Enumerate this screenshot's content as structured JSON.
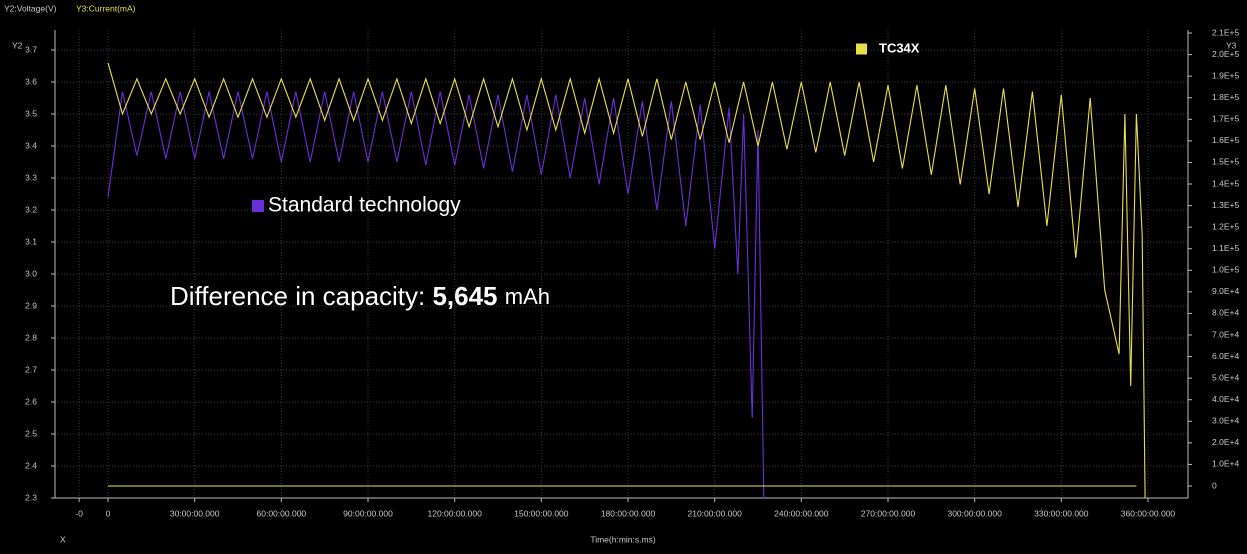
{
  "chart_data": {
    "type": "line",
    "y2_title": "Y2:Voltage(V)",
    "y3_title": "Y3:Current(mA)",
    "y_axis_label": "Y2",
    "y2_axis_label": "Y3",
    "x_axis_name": "X",
    "x_title": "Time(h:min:s.ms)",
    "annotation": [
      "Difference in capacity:",
      "5,645",
      "mAh"
    ],
    "xlim": [
      -18.35,
      373.85
    ],
    "xticks": [
      {
        "value": -10,
        "label": "-0"
      },
      0,
      {
        "value": 30,
        "label": "30:00:00.000"
      },
      {
        "value": 60,
        "label": "60:00:00.000"
      },
      {
        "value": 90,
        "label": "90:00:00.000"
      },
      {
        "value": 120,
        "label": "120:00:00.000"
      },
      {
        "value": 150,
        "label": "150:00:00.000"
      },
      {
        "value": 180,
        "label": "180:00:00.000"
      },
      {
        "value": 210,
        "label": "210:00:00.000"
      },
      {
        "value": 240,
        "label": "240:00:00.000"
      },
      {
        "value": 270,
        "label": "270:00:00.000"
      },
      {
        "value": 300,
        "label": "300:00:00.000"
      },
      {
        "value": 330,
        "label": "330:00:00.000"
      },
      {
        "value": 360,
        "label": "360:00:00.000"
      }
    ],
    "ylim": [
      2.3,
      3.7625
    ],
    "yticks": [
      2.3,
      2.4,
      2.5,
      2.6,
      2.7,
      2.8,
      2.9,
      {
        "value": 3.0,
        "label": "3.0"
      },
      3.1,
      3.2,
      3.3,
      3.4,
      3.5,
      3.6,
      3.7
    ],
    "y2lim": [
      -5563,
      211400
    ],
    "y2ticks": [
      0,
      {
        "value": 10000,
        "label": "1.0E+4"
      },
      {
        "value": 20000,
        "label": "2.0E+4"
      },
      {
        "value": 30000,
        "label": "3.0E+4"
      },
      {
        "value": 40000,
        "label": "4.0E+4"
      },
      {
        "value": 50000,
        "label": "5.0E+4"
      },
      {
        "value": 60000,
        "label": "6.0E+4"
      },
      {
        "value": 70000,
        "label": "7.0E+4"
      },
      {
        "value": 80000,
        "label": "8.0E+4"
      },
      {
        "value": 90000,
        "label": "9.0E+4"
      },
      {
        "value": 100000,
        "label": "1.0E+5"
      },
      {
        "value": 110000,
        "label": "1.1E+5"
      },
      {
        "value": 120000,
        "label": "1.2E+5"
      },
      {
        "value": 130000,
        "label": "1.3E+5"
      },
      {
        "value": 140000,
        "label": "1.4E+5"
      },
      {
        "value": 150000,
        "label": "1.5E+5"
      },
      {
        "value": 160000,
        "label": "1.6E+5"
      },
      {
        "value": 170000,
        "label": "1.7E+5"
      },
      {
        "value": 180000,
        "label": "1.8E+5"
      },
      {
        "value": 190000,
        "label": "1.9E+5"
      },
      {
        "value": 200000,
        "label": "2.0E+5"
      },
      {
        "value": 210000,
        "label": "2.1E+5"
      }
    ],
    "grid": true,
    "series": [
      {
        "name": "Standard technology",
        "color": "#6a2fd8",
        "x": [
          0,
          5,
          10,
          15,
          20,
          25,
          30,
          35,
          40,
          45,
          50,
          55,
          60,
          65,
          70,
          75,
          80,
          85,
          90,
          95,
          100,
          105,
          110,
          115,
          120,
          125,
          130,
          135,
          140,
          145,
          150,
          155,
          160,
          165,
          170,
          175,
          180,
          185,
          190,
          195,
          200,
          205,
          210,
          215,
          218,
          220,
          223,
          225,
          227
        ],
        "values": [
          3.24,
          3.57,
          3.37,
          3.57,
          3.36,
          3.57,
          3.36,
          3.57,
          3.36,
          3.57,
          3.36,
          3.57,
          3.35,
          3.57,
          3.35,
          3.57,
          3.35,
          3.57,
          3.35,
          3.57,
          3.35,
          3.57,
          3.34,
          3.57,
          3.34,
          3.56,
          3.33,
          3.56,
          3.32,
          3.56,
          3.31,
          3.56,
          3.3,
          3.55,
          3.28,
          3.55,
          3.25,
          3.54,
          3.2,
          3.54,
          3.15,
          3.53,
          3.08,
          3.52,
          3.0,
          3.5,
          2.55,
          3.45,
          2.3
        ]
      },
      {
        "name": "TC34X",
        "color": "#e8e04a",
        "x": [
          0,
          5,
          10,
          15,
          20,
          25,
          30,
          35,
          40,
          45,
          50,
          55,
          60,
          65,
          70,
          75,
          80,
          85,
          90,
          95,
          100,
          105,
          110,
          115,
          120,
          125,
          130,
          135,
          140,
          145,
          150,
          155,
          160,
          165,
          170,
          175,
          180,
          185,
          190,
          195,
          200,
          205,
          210,
          215,
          220,
          225,
          230,
          235,
          240,
          245,
          250,
          255,
          260,
          265,
          270,
          275,
          280,
          285,
          290,
          295,
          300,
          305,
          310,
          315,
          320,
          325,
          330,
          335,
          340,
          345,
          350,
          352,
          354,
          356,
          358,
          359
        ],
        "values": [
          3.66,
          3.5,
          3.61,
          3.5,
          3.61,
          3.5,
          3.61,
          3.49,
          3.61,
          3.49,
          3.61,
          3.49,
          3.61,
          3.49,
          3.61,
          3.48,
          3.61,
          3.48,
          3.61,
          3.48,
          3.61,
          3.47,
          3.61,
          3.47,
          3.61,
          3.46,
          3.61,
          3.46,
          3.61,
          3.45,
          3.61,
          3.45,
          3.61,
          3.44,
          3.61,
          3.44,
          3.61,
          3.43,
          3.61,
          3.42,
          3.6,
          3.42,
          3.6,
          3.41,
          3.6,
          3.4,
          3.6,
          3.39,
          3.6,
          3.38,
          3.6,
          3.37,
          3.6,
          3.35,
          3.59,
          3.33,
          3.59,
          3.31,
          3.59,
          3.28,
          3.58,
          3.25,
          3.58,
          3.21,
          3.57,
          3.15,
          3.56,
          3.05,
          3.55,
          2.95,
          2.75,
          3.5,
          2.65,
          3.5,
          3.12,
          2.3
        ]
      },
      {
        "color": "#e8e04a",
        "axis": "y2",
        "x": [
          0,
          356
        ],
        "values": [
          0,
          0
        ]
      }
    ]
  }
}
